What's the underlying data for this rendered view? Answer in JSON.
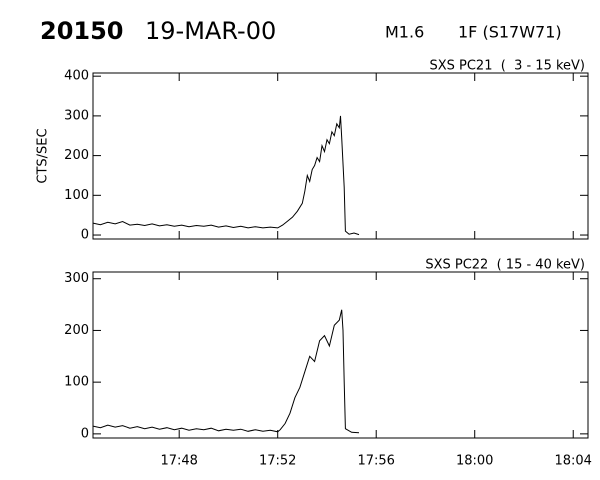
{
  "header": {
    "event": "20150",
    "date": "19-MAR-00",
    "class": "M1.6",
    "flare": "1F (S17W71)"
  },
  "chart_data": [
    {
      "type": "line",
      "title": "SXS PC21  (  3 - 15 keV)",
      "y_label": "CTS/SEC",
      "color": "#000000",
      "xlim": [
        44.5,
        64.6
      ],
      "ylim": [
        -10,
        408
      ],
      "yticks": [
        0,
        100,
        200,
        300,
        400
      ],
      "x": [
        44.5,
        44.8,
        45.1,
        45.4,
        45.7,
        46.0,
        46.3,
        46.6,
        46.9,
        47.2,
        47.5,
        47.8,
        48.1,
        48.4,
        48.7,
        49.0,
        49.3,
        49.6,
        49.9,
        50.2,
        50.5,
        50.8,
        51.1,
        51.4,
        51.7,
        52.0,
        52.2,
        52.4,
        52.6,
        52.8,
        53.0,
        53.1,
        53.2,
        53.3,
        53.4,
        53.5,
        53.6,
        53.7,
        53.8,
        53.9,
        54.0,
        54.1,
        54.2,
        54.3,
        54.4,
        54.5,
        54.55,
        54.6,
        54.7,
        54.75,
        54.9,
        55.1,
        55.3
      ],
      "values": [
        30,
        26,
        32,
        28,
        34,
        25,
        27,
        24,
        28,
        23,
        26,
        22,
        25,
        21,
        24,
        22,
        25,
        20,
        23,
        19,
        22,
        18,
        21,
        18,
        20,
        18,
        25,
        35,
        45,
        60,
        80,
        110,
        150,
        135,
        165,
        175,
        195,
        185,
        225,
        210,
        240,
        230,
        260,
        250,
        280,
        270,
        300,
        245,
        120,
        10,
        2,
        5,
        1
      ]
    },
    {
      "type": "line",
      "title": "SXS PC22  ( 15 - 40 keV)",
      "color": "#000000",
      "xlim": [
        44.5,
        64.6
      ],
      "ylim": [
        -8,
        313
      ],
      "yticks": [
        0,
        100,
        200,
        300
      ],
      "xticks": [
        {
          "value": 48,
          "label": "17:48"
        },
        {
          "value": 52,
          "label": "17:52"
        },
        {
          "value": 56,
          "label": "17:56"
        },
        {
          "value": 60,
          "label": "18:00"
        },
        {
          "value": 64,
          "label": "18:04"
        }
      ],
      "x": [
        44.5,
        44.8,
        45.1,
        45.4,
        45.7,
        46.0,
        46.3,
        46.6,
        46.9,
        47.2,
        47.5,
        47.8,
        48.1,
        48.4,
        48.7,
        49.0,
        49.3,
        49.6,
        49.9,
        50.2,
        50.5,
        50.8,
        51.1,
        51.4,
        51.7,
        52.0,
        52.1,
        52.3,
        52.5,
        52.7,
        52.9,
        53.1,
        53.3,
        53.5,
        53.7,
        53.9,
        54.1,
        54.3,
        54.5,
        54.6,
        54.65,
        54.7,
        54.75,
        55.0,
        55.3
      ],
      "values": [
        15,
        12,
        17,
        13,
        16,
        11,
        14,
        10,
        13,
        9,
        12,
        8,
        11,
        7,
        10,
        8,
        11,
        6,
        9,
        7,
        9,
        5,
        8,
        5,
        7,
        4,
        8,
        20,
        40,
        70,
        90,
        120,
        150,
        140,
        180,
        190,
        170,
        210,
        220,
        240,
        200,
        100,
        10,
        3,
        2
      ]
    }
  ]
}
